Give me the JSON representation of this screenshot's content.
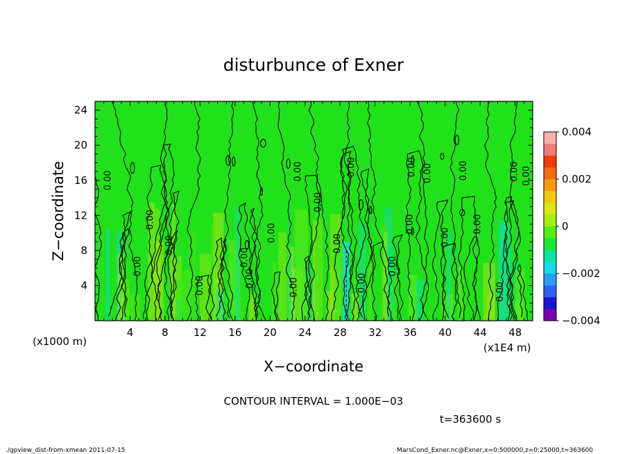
{
  "chart_data": {
    "type": "heatmap",
    "title": "disturbunce of Exner",
    "xlabel": "X−coordinate",
    "ylabel": "Z−coordinate",
    "x_unit_label": "(x1E4 m)",
    "y_unit_label": "(x1000 m)",
    "xlim": [
      0,
      50
    ],
    "ylim": [
      0,
      25
    ],
    "x_ticks": [
      4,
      8,
      12,
      16,
      20,
      24,
      28,
      32,
      36,
      40,
      44,
      48
    ],
    "y_ticks": [
      4,
      8,
      12,
      16,
      20,
      24
    ],
    "colorbar": {
      "min": -0.004,
      "max": 0.004,
      "tick_labels": [
        "0.004",
        "0.002",
        "0",
        "−0.002",
        "−0.004"
      ],
      "tick_values": [
        0.004,
        0.002,
        0,
        -0.002,
        -0.004
      ],
      "colors": [
        "#7a00b0",
        "#1a14d6",
        "#2f5ef5",
        "#2d9bf5",
        "#18d8ee",
        "#0be3a0",
        "#19e830",
        "#52ef12",
        "#a3ef12",
        "#d8e614",
        "#f5c80f",
        "#f59a0c",
        "#f56a0a",
        "#f53b0a",
        "#f57a7a",
        "#f8b0b0"
      ]
    },
    "contour_interval_text": "CONTOUR INTERVAL = 1.000E−03",
    "contour_label": "0.00",
    "contour_labels": [
      {
        "x": 1.8,
        "z": 16.0
      },
      {
        "x": 5.2,
        "z": 6.2
      },
      {
        "x": 6.6,
        "z": 11.5
      },
      {
        "x": 8.8,
        "z": 8.6
      },
      {
        "x": 12.3,
        "z": 4.0
      },
      {
        "x": 17.4,
        "z": 7.2
      },
      {
        "x": 18.0,
        "z": 4.8
      },
      {
        "x": 20.5,
        "z": 10.0
      },
      {
        "x": 23.0,
        "z": 3.8
      },
      {
        "x": 23.5,
        "z": 17.0
      },
      {
        "x": 25.8,
        "z": 13.5
      },
      {
        "x": 28.0,
        "z": 8.8
      },
      {
        "x": 30.8,
        "z": 4.3
      },
      {
        "x": 29.6,
        "z": 17.5
      },
      {
        "x": 34.3,
        "z": 6.2
      },
      {
        "x": 36.3,
        "z": 11.0
      },
      {
        "x": 36.5,
        "z": 17.5
      },
      {
        "x": 38.3,
        "z": 16.8
      },
      {
        "x": 40.3,
        "z": 9.5
      },
      {
        "x": 42.4,
        "z": 17.1
      },
      {
        "x": 44.0,
        "z": 11.0
      },
      {
        "x": 46.6,
        "z": 3.3
      },
      {
        "x": 48.2,
        "z": 17.0
      },
      {
        "x": 49.6,
        "z": 16.5
      }
    ]
  },
  "timestamp": "t=363600 s",
  "footer_left": "./gpview_dist-from-xmean  2011-07-15",
  "footer_right": "MarsCond_Exner.nc@Exner,x=0:500000,z=0:25000,t=363600"
}
